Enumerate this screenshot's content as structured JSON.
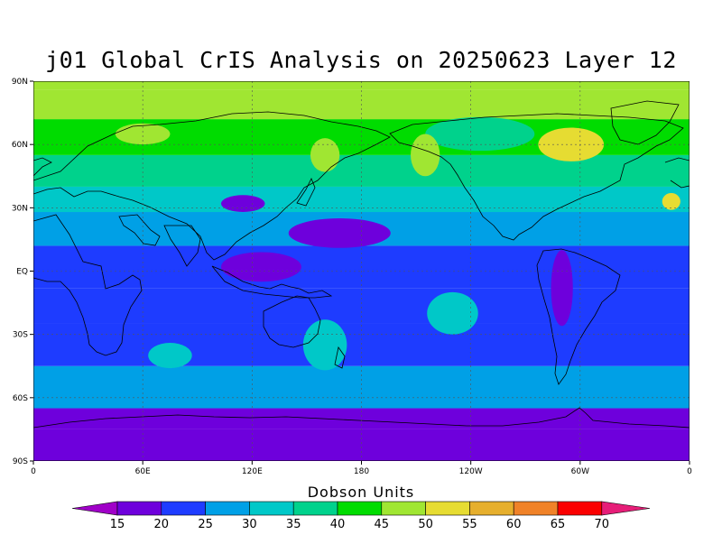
{
  "title": "j01 Global CrIS Analysis on 20250623 Layer 12",
  "map": {
    "projection": "cylindrical-equidistant",
    "lon_range": [
      0,
      360
    ],
    "lat_range": [
      -90,
      90
    ],
    "grid_lines": true,
    "lat_ticks": [
      {
        "value": 90,
        "label": "90N"
      },
      {
        "value": 60,
        "label": "60N"
      },
      {
        "value": 30,
        "label": "30N"
      },
      {
        "value": 0,
        "label": "EQ"
      },
      {
        "value": -30,
        "label": "30S"
      },
      {
        "value": -60,
        "label": "60S"
      },
      {
        "value": -90,
        "label": "90S"
      }
    ],
    "lon_ticks": [
      {
        "value": 0,
        "label": "0"
      },
      {
        "value": 60,
        "label": "60E"
      },
      {
        "value": 120,
        "label": "120E"
      },
      {
        "value": 180,
        "label": "180"
      },
      {
        "value": 240,
        "label": "120W"
      },
      {
        "value": 300,
        "label": "60W"
      },
      {
        "value": 360,
        "label": "0"
      }
    ]
  },
  "chart_data": {
    "type": "heatmap",
    "title": "j01 Global CrIS Analysis on 20250623 Layer 12",
    "colorbar": {
      "label": "Dobson Units",
      "levels": [
        15,
        20,
        25,
        30,
        35,
        40,
        45,
        50,
        55,
        60,
        65,
        70
      ],
      "colors": [
        "#a000c8",
        "#6e00dc",
        "#1e3cff",
        "#00a0e6",
        "#00c8c8",
        "#00d28c",
        "#00dc00",
        "#a0e632",
        "#e6dc32",
        "#e6af2d",
        "#f08228",
        "#fa0000",
        "#e61e78"
      ]
    },
    "zonal_bands": [
      {
        "lat_min": -90,
        "lat_max": -75,
        "value": 16
      },
      {
        "lat_min": -75,
        "lat_max": -65,
        "value": 18
      },
      {
        "lat_min": -65,
        "lat_max": -45,
        "value": 27
      },
      {
        "lat_min": -45,
        "lat_max": -25,
        "value": 24
      },
      {
        "lat_min": -25,
        "lat_max": -8,
        "value": 22
      },
      {
        "lat_min": -8,
        "lat_max": 12,
        "value": 21
      },
      {
        "lat_min": 12,
        "lat_max": 28,
        "value": 26
      },
      {
        "lat_min": 28,
        "lat_max": 40,
        "value": 32
      },
      {
        "lat_min": 40,
        "lat_max": 55,
        "value": 37
      },
      {
        "lat_min": 55,
        "lat_max": 72,
        "value": 42
      },
      {
        "lat_min": 72,
        "lat_max": 86,
        "value": 46
      },
      {
        "lat_min": 86,
        "lat_max": 90,
        "value": 48
      }
    ],
    "anomalies": [
      {
        "lon": 115,
        "lat": 32,
        "rlon": 12,
        "rlat": 4,
        "value": 18
      },
      {
        "lon": 125,
        "lat": 2,
        "rlon": 22,
        "rlat": 7,
        "value": 17
      },
      {
        "lon": 168,
        "lat": 18,
        "rlon": 28,
        "rlat": 7,
        "value": 18
      },
      {
        "lon": 290,
        "lat": -8,
        "rlon": 6,
        "rlat": 18,
        "value": 18
      },
      {
        "lon": 60,
        "lat": 65,
        "rlon": 15,
        "rlat": 5,
        "value": 48
      },
      {
        "lon": 295,
        "lat": 60,
        "rlon": 18,
        "rlat": 8,
        "value": 51
      },
      {
        "lon": 350,
        "lat": 33,
        "rlon": 5,
        "rlat": 4,
        "value": 52
      },
      {
        "lon": 245,
        "lat": 65,
        "rlon": 30,
        "rlat": 8,
        "value": 38
      },
      {
        "lon": 215,
        "lat": 55,
        "rlon": 8,
        "rlat": 10,
        "value": 46
      },
      {
        "lon": 160,
        "lat": 55,
        "rlon": 8,
        "rlat": 8,
        "value": 45
      },
      {
        "lon": 160,
        "lat": -35,
        "rlon": 12,
        "rlat": 12,
        "value": 32
      },
      {
        "lon": 230,
        "lat": -20,
        "rlon": 14,
        "rlat": 10,
        "value": 30
      },
      {
        "lon": 75,
        "lat": -40,
        "rlon": 12,
        "rlat": 6,
        "value": 31
      }
    ]
  }
}
